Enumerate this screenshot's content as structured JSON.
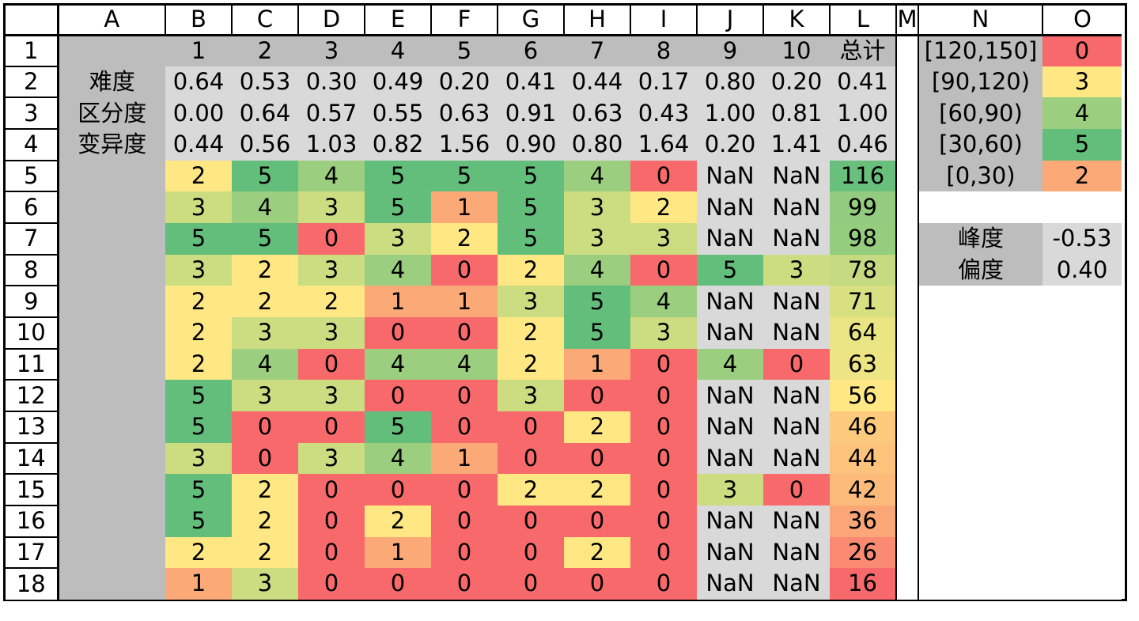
{
  "columns": [
    "A",
    "B",
    "C",
    "D",
    "E",
    "F",
    "G",
    "H",
    "I",
    "J",
    "K",
    "L",
    "M",
    "N",
    "O"
  ],
  "row_numbers": [
    "1",
    "2",
    "3",
    "4",
    "5",
    "6",
    "7",
    "8",
    "9",
    "10",
    "11",
    "12",
    "13",
    "14",
    "15",
    "16",
    "17",
    "18"
  ],
  "header_row": [
    "1",
    "2",
    "3",
    "4",
    "5",
    "6",
    "7",
    "8",
    "9",
    "10",
    "总计"
  ],
  "stats": [
    {
      "label": "难度",
      "values": [
        "0.64",
        "0.53",
        "0.30",
        "0.49",
        "0.20",
        "0.41",
        "0.44",
        "0.17",
        "0.80",
        "0.20",
        "0.41"
      ]
    },
    {
      "label": "区分度",
      "values": [
        "0.00",
        "0.64",
        "0.57",
        "0.55",
        "0.63",
        "0.91",
        "0.63",
        "0.43",
        "1.00",
        "0.81",
        "1.00"
      ]
    },
    {
      "label": "变异度",
      "values": [
        "0.44",
        "0.56",
        "1.03",
        "0.82",
        "1.56",
        "0.90",
        "0.80",
        "1.64",
        "0.20",
        "1.41",
        "0.46"
      ]
    }
  ],
  "scores": [
    {
      "values": [
        "2",
        "5",
        "4",
        "5",
        "5",
        "5",
        "4",
        "0",
        "NaN",
        "NaN"
      ],
      "total": "116"
    },
    {
      "values": [
        "3",
        "4",
        "3",
        "5",
        "1",
        "5",
        "3",
        "2",
        "NaN",
        "NaN"
      ],
      "total": "99"
    },
    {
      "values": [
        "5",
        "5",
        "0",
        "3",
        "2",
        "5",
        "3",
        "3",
        "NaN",
        "NaN"
      ],
      "total": "98"
    },
    {
      "values": [
        "3",
        "2",
        "3",
        "4",
        "0",
        "2",
        "4",
        "0",
        "5",
        "3"
      ],
      "total": "78"
    },
    {
      "values": [
        "2",
        "2",
        "2",
        "1",
        "1",
        "3",
        "5",
        "4",
        "NaN",
        "NaN"
      ],
      "total": "71"
    },
    {
      "values": [
        "2",
        "3",
        "3",
        "0",
        "0",
        "2",
        "5",
        "3",
        "NaN",
        "NaN"
      ],
      "total": "64"
    },
    {
      "values": [
        "2",
        "4",
        "0",
        "4",
        "4",
        "2",
        "1",
        "0",
        "4",
        "0"
      ],
      "total": "63"
    },
    {
      "values": [
        "5",
        "3",
        "3",
        "0",
        "0",
        "3",
        "0",
        "0",
        "NaN",
        "NaN"
      ],
      "total": "56"
    },
    {
      "values": [
        "5",
        "0",
        "0",
        "5",
        "0",
        "0",
        "2",
        "0",
        "NaN",
        "NaN"
      ],
      "total": "46"
    },
    {
      "values": [
        "3",
        "0",
        "3",
        "4",
        "1",
        "0",
        "0",
        "0",
        "NaN",
        "NaN"
      ],
      "total": "44"
    },
    {
      "values": [
        "5",
        "2",
        "0",
        "0",
        "0",
        "2",
        "2",
        "0",
        "3",
        "0"
      ],
      "total": "42"
    },
    {
      "values": [
        "5",
        "2",
        "0",
        "2",
        "0",
        "0",
        "0",
        "0",
        "NaN",
        "NaN"
      ],
      "total": "36"
    },
    {
      "values": [
        "2",
        "2",
        "0",
        "1",
        "0",
        "0",
        "2",
        "0",
        "NaN",
        "NaN"
      ],
      "total": "26"
    },
    {
      "values": [
        "1",
        "3",
        "0",
        "0",
        "0",
        "0",
        "0",
        "0",
        "NaN",
        "NaN"
      ],
      "total": "16"
    }
  ],
  "ranges": [
    {
      "label": "[120,150]",
      "count": "0",
      "color": "#f8696b"
    },
    {
      "label": "[90,120)",
      "count": "3",
      "color": "#ffe884"
    },
    {
      "label": "[60,90)",
      "count": "4",
      "color": "#9bce7f"
    },
    {
      "label": "[30,60)",
      "count": "5",
      "color": "#63be7b"
    },
    {
      "label": "[0,30)",
      "count": "2",
      "color": "#fba977"
    }
  ],
  "distribution": [
    {
      "label": "峰度",
      "value": "-0.53"
    },
    {
      "label": "偏度",
      "value": "0.40"
    }
  ],
  "palette": {
    "0": "#f8696b",
    "1": "#fba977",
    "2": "#ffe884",
    "3": "#cbdc81",
    "4": "#9bce7f",
    "5": "#63be7b",
    "NaN": "#d9d9d9",
    "header_gray": "#bdbdbd",
    "stat_gray": "#d9d9d9"
  }
}
